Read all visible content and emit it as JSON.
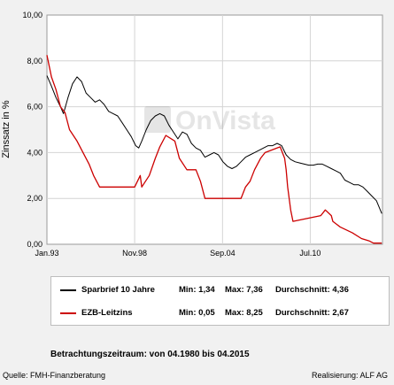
{
  "chart_data": {
    "type": "line",
    "ylabel": "Zinssatz in %",
    "ylim": [
      0,
      10
    ],
    "yticks": [
      "10,00",
      "8,00",
      "6,00",
      "4,00",
      "2,00",
      "0,00"
    ],
    "ytick_values": [
      10,
      8,
      6,
      4,
      2,
      0
    ],
    "xlim": [
      1993.0,
      2015.3
    ],
    "xticks": [
      "Jan.93",
      "Nov.98",
      "Sep.04",
      "Jul.10"
    ],
    "xtick_values": [
      1993.0,
      1998.83,
      2004.67,
      2010.5
    ],
    "grid": true,
    "watermark": "OnVista",
    "series": [
      {
        "name": "Sparbrief 10 Jahre",
        "color": "#000000",
        "x": [
          1993.0,
          1993.3,
          1993.6,
          1993.9,
          1994.1,
          1994.4,
          1994.7,
          1995.0,
          1995.3,
          1995.6,
          1995.9,
          1996.2,
          1996.5,
          1996.8,
          1997.1,
          1997.4,
          1997.7,
          1998.0,
          1998.3,
          1998.6,
          1998.9,
          1999.1,
          1999.3,
          1999.6,
          1999.9,
          2000.2,
          2000.5,
          2000.8,
          2001.1,
          2001.4,
          2001.7,
          2002.0,
          2002.3,
          2002.6,
          2002.9,
          2003.2,
          2003.5,
          2003.8,
          2004.1,
          2004.4,
          2004.7,
          2005.0,
          2005.3,
          2005.6,
          2005.9,
          2006.2,
          2006.5,
          2006.8,
          2007.1,
          2007.4,
          2007.7,
          2008.0,
          2008.3,
          2008.6,
          2008.9,
          2009.2,
          2009.5,
          2009.8,
          2010.1,
          2010.4,
          2010.7,
          2011.0,
          2011.3,
          2011.6,
          2011.9,
          2012.2,
          2012.5,
          2012.8,
          2013.1,
          2013.4,
          2013.7,
          2014.0,
          2014.3,
          2014.6,
          2014.9,
          2015.25
        ],
        "values": [
          7.36,
          6.9,
          6.4,
          6.0,
          5.7,
          6.4,
          7.0,
          7.3,
          7.1,
          6.6,
          6.4,
          6.2,
          6.3,
          6.1,
          5.8,
          5.7,
          5.6,
          5.3,
          5.0,
          4.7,
          4.3,
          4.2,
          4.5,
          5.0,
          5.4,
          5.6,
          5.7,
          5.6,
          5.2,
          4.9,
          4.6,
          4.9,
          4.8,
          4.4,
          4.2,
          4.1,
          3.8,
          3.9,
          4.0,
          3.9,
          3.6,
          3.4,
          3.3,
          3.4,
          3.6,
          3.8,
          3.9,
          4.0,
          4.1,
          4.2,
          4.3,
          4.3,
          4.4,
          4.3,
          3.9,
          3.7,
          3.6,
          3.55,
          3.5,
          3.45,
          3.45,
          3.5,
          3.5,
          3.4,
          3.3,
          3.2,
          3.1,
          2.8,
          2.7,
          2.6,
          2.6,
          2.5,
          2.3,
          2.1,
          1.9,
          1.34
        ]
      },
      {
        "name": "EZB-Leitzins",
        "color": "#cc0000",
        "x": [
          1993.0,
          1993.3,
          1993.6,
          1993.9,
          1994.2,
          1994.5,
          1995.0,
          1995.4,
          1995.8,
          1996.1,
          1996.5,
          1997.0,
          1998.0,
          1998.83,
          1999.2,
          1999.3,
          1999.8,
          2000.2,
          2000.5,
          2000.9,
          2001.5,
          2001.8,
          2002.3,
          2002.9,
          2003.2,
          2003.5,
          2005.9,
          2006.2,
          2006.5,
          2006.8,
          2007.2,
          2007.5,
          2008.5,
          2008.8,
          2008.9,
          2009.0,
          2009.1,
          2009.2,
          2009.35,
          2011.2,
          2011.5,
          2011.9,
          2012.0,
          2012.5,
          2013.3,
          2013.9,
          2014.4,
          2014.7,
          2015.25
        ],
        "values": [
          8.25,
          7.3,
          6.75,
          6.0,
          5.75,
          5.0,
          4.5,
          4.0,
          3.5,
          3.0,
          2.5,
          2.5,
          2.5,
          2.5,
          3.0,
          2.5,
          3.0,
          3.75,
          4.25,
          4.75,
          4.5,
          3.75,
          3.25,
          3.25,
          2.75,
          2.0,
          2.0,
          2.5,
          2.75,
          3.25,
          3.75,
          4.0,
          4.25,
          3.75,
          3.25,
          2.5,
          2.0,
          1.5,
          1.0,
          1.25,
          1.5,
          1.25,
          1.0,
          0.75,
          0.5,
          0.25,
          0.15,
          0.05,
          0.05
        ]
      }
    ]
  },
  "legend": [
    {
      "name": "Sparbrief 10 Jahre",
      "color": "#000000",
      "min": "Min: 1,34",
      "max": "Max: 7,36",
      "avg": "Durchschnitt: 4,36"
    },
    {
      "name": "EZB-Leitzins",
      "color": "#cc0000",
      "min": "Min: 0,05",
      "max": "Max: 8,25",
      "avg": "Durchschnitt: 2,67"
    }
  ],
  "period": "Betrachtungszeitraum: von 04.1980 bis 04.2015",
  "footer": {
    "source": "Quelle: FMH-Finanzberatung",
    "credit": "Realisierung: ALF AG"
  }
}
